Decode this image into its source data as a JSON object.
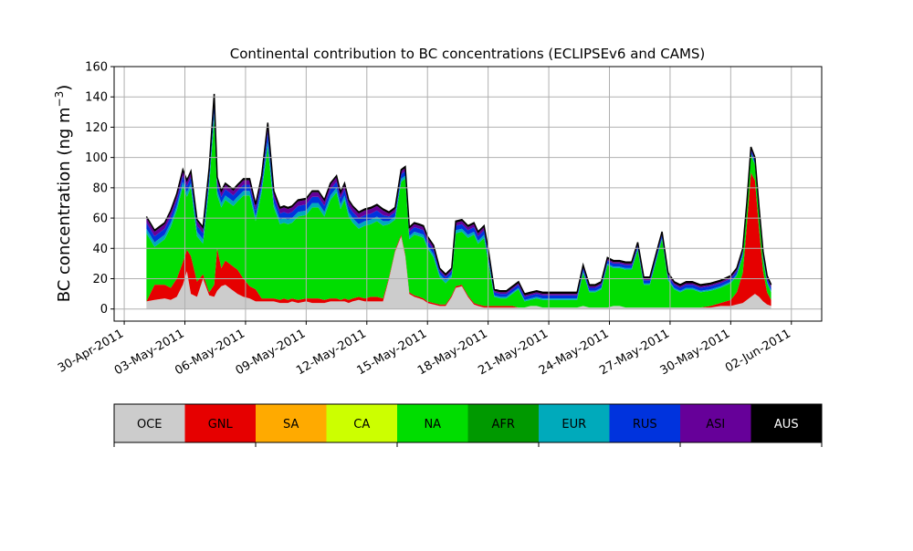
{
  "chart_data": {
    "type": "area",
    "title": "Continental contribution to BC concentrations (ECLIPSEv6 and CAMS)",
    "ylabel": "BC concentration (ng m",
    "ylabel_sup": "−3",
    "ylabel_close": ")",
    "xlabel": "",
    "ylim": [
      -8,
      160
    ],
    "yticks": [
      0,
      20,
      40,
      60,
      80,
      100,
      120,
      140,
      160
    ],
    "xlim": [
      -0.5,
      34.5
    ],
    "x_ticks": [
      0,
      3,
      6,
      9,
      12,
      15,
      18,
      21,
      24,
      27,
      30,
      33
    ],
    "x_tick_labels": [
      "30-Apr-2011",
      "03-May-2011",
      "06-May-2011",
      "09-May-2011",
      "12-May-2011",
      "15-May-2011",
      "18-May-2011",
      "21-May-2011",
      "24-May-2011",
      "27-May-2011",
      "30-May-2011",
      "02-Jun-2011"
    ],
    "x_unit": "days since 30-Apr-2011 00:00 (time axis)",
    "grid": true,
    "total_outline_color": "#000000",
    "series_colors": {
      "OCE": "#cccccc",
      "GNL": "#e60000",
      "SA": "#ffaa00",
      "CA": "#ccff00",
      "NA": "#00dd00",
      "AFR": "#009900",
      "EUR": "#00aabb",
      "RUS": "#0033dd",
      "ASI": "#660099",
      "AUS": "#000000"
    },
    "series_order": [
      "OCE",
      "GNL",
      "NA",
      "EUR",
      "RUS",
      "ASI",
      "AUS"
    ],
    "x": [
      1.1,
      1.5,
      2.0,
      2.3,
      2.6,
      2.9,
      3.1,
      3.3,
      3.6,
      3.9,
      4.2,
      4.45,
      4.6,
      4.8,
      5.0,
      5.2,
      5.4,
      5.6,
      5.9,
      6.2,
      6.5,
      6.8,
      7.1,
      7.4,
      7.7,
      7.9,
      8.1,
      8.3,
      8.6,
      9.0,
      9.3,
      9.6,
      9.9,
      10.2,
      10.5,
      10.7,
      10.9,
      11.1,
      11.3,
      11.6,
      11.9,
      12.2,
      12.5,
      12.8,
      13.1,
      13.4,
      13.7,
      13.9,
      14.1,
      14.35,
      14.6,
      14.8,
      15.0,
      15.3,
      15.6,
      15.9,
      16.2,
      16.4,
      16.7,
      17.0,
      17.3,
      17.5,
      17.8,
      18.0,
      18.3,
      18.6,
      18.9,
      19.2,
      19.5,
      19.8,
      20.1,
      20.4,
      20.7,
      21.0,
      21.3,
      21.6,
      21.8,
      22.1,
      22.4,
      22.7,
      23.0,
      23.3,
      23.6,
      23.9,
      24.2,
      24.5,
      24.8,
      25.1,
      25.4,
      25.7,
      26.0,
      26.3,
      26.6,
      26.9,
      27.2,
      27.5,
      27.8,
      28.1,
      28.5,
      29.0,
      29.5,
      30.0,
      30.3,
      30.6,
      30.8,
      31.0,
      31.2,
      31.4,
      31.6,
      31.8,
      32.0
    ],
    "series": [
      {
        "name": "OCE",
        "values": [
          5,
          6,
          7,
          6,
          8,
          16,
          25,
          10,
          8,
          20,
          9,
          8,
          12,
          15,
          16,
          14,
          12,
          10,
          8,
          7,
          5,
          5,
          5,
          5,
          4,
          4,
          4,
          5,
          4,
          5,
          4,
          4,
          4,
          5,
          5,
          5,
          5,
          4,
          5,
          6,
          5,
          5,
          5,
          5,
          20,
          38,
          48,
          35,
          10,
          8,
          7,
          6,
          4,
          3,
          2,
          2,
          8,
          14,
          15,
          8,
          3,
          2,
          1,
          1,
          1,
          1,
          1,
          1,
          1,
          1,
          2,
          2,
          1,
          1,
          1,
          1,
          1,
          1,
          1,
          2,
          1,
          1,
          1,
          1,
          2,
          2,
          1,
          1,
          1,
          1,
          1,
          1,
          1,
          1,
          1,
          1,
          1,
          1,
          1,
          1,
          2,
          2,
          3,
          4,
          6,
          8,
          10,
          8,
          5,
          3,
          2
        ]
      },
      {
        "name": "GNL",
        "values": [
          0,
          10,
          9,
          8,
          12,
          15,
          14,
          25,
          10,
          3,
          2,
          8,
          28,
          12,
          16,
          16,
          16,
          16,
          12,
          8,
          8,
          2,
          2,
          2,
          2,
          3,
          2,
          2,
          2,
          2,
          3,
          3,
          2,
          2,
          2,
          1,
          2,
          2,
          2,
          2,
          2,
          3,
          3,
          2,
          1,
          1,
          1,
          1,
          1,
          1,
          1,
          1,
          1,
          1,
          1,
          1,
          1,
          1,
          1,
          1,
          1,
          1,
          1,
          1,
          1,
          1,
          1,
          1,
          0,
          0,
          0,
          0,
          0,
          0,
          0,
          0,
          0,
          0,
          0,
          0,
          0,
          0,
          0,
          0,
          0,
          0,
          0,
          0,
          0,
          0,
          0,
          0,
          0,
          0,
          0,
          0,
          0,
          0,
          0,
          1,
          2,
          4,
          8,
          20,
          50,
          82,
          75,
          45,
          20,
          8,
          4
        ]
      },
      {
        "name": "NA",
        "values": [
          45,
          25,
          30,
          40,
          45,
          50,
          35,
          45,
          30,
          20,
          70,
          110,
          35,
          40,
          40,
          40,
          40,
          45,
          55,
          60,
          45,
          70,
          100,
          60,
          50,
          50,
          50,
          50,
          55,
          55,
          60,
          60,
          55,
          65,
          70,
          60,
          65,
          55,
          50,
          45,
          48,
          48,
          50,
          48,
          35,
          20,
          35,
          50,
          35,
          40,
          40,
          40,
          35,
          30,
          18,
          14,
          12,
          35,
          35,
          38,
          45,
          40,
          45,
          30,
          6,
          5,
          5,
          8,
          12,
          4,
          4,
          5,
          5,
          5,
          5,
          5,
          5,
          5,
          5,
          22,
          10,
          10,
          12,
          28,
          25,
          25,
          25,
          25,
          38,
          15,
          15,
          30,
          45,
          18,
          12,
          10,
          12,
          12,
          10,
          10,
          10,
          11,
          11,
          11,
          10,
          12,
          10,
          9,
          8,
          6,
          5
        ]
      },
      {
        "name": "EUR",
        "values": [
          3,
          3,
          3,
          3,
          3,
          3,
          3,
          3,
          3,
          3,
          3,
          4,
          3,
          3,
          3,
          3,
          3,
          3,
          3,
          3,
          3,
          3,
          4,
          3,
          3,
          3,
          3,
          3,
          3,
          3,
          3,
          3,
          3,
          3,
          3,
          3,
          3,
          3,
          3,
          3,
          3,
          3,
          3,
          3,
          2,
          2,
          2,
          2,
          2,
          2,
          2,
          2,
          2,
          2,
          2,
          2,
          2,
          2,
          2,
          2,
          2,
          2,
          2,
          2,
          1,
          1,
          1,
          1,
          1,
          1,
          1,
          1,
          1,
          1,
          1,
          1,
          1,
          1,
          1,
          1,
          1,
          1,
          1,
          1,
          1,
          1,
          1,
          1,
          1,
          1,
          1,
          1,
          1,
          1,
          1,
          1,
          1,
          1,
          1,
          1,
          1,
          1,
          1,
          1,
          1,
          1,
          1,
          1,
          1,
          1,
          1
        ]
      },
      {
        "name": "RUS",
        "values": [
          4,
          4,
          4,
          4,
          4,
          4,
          4,
          4,
          4,
          4,
          5,
          6,
          5,
          4,
          4,
          4,
          4,
          4,
          4,
          4,
          4,
          4,
          6,
          4,
          4,
          4,
          4,
          4,
          4,
          4,
          4,
          4,
          4,
          4,
          4,
          4,
          4,
          4,
          4,
          4,
          4,
          4,
          4,
          4,
          3,
          3,
          3,
          3,
          3,
          3,
          3,
          3,
          3,
          3,
          2,
          2,
          2,
          3,
          3,
          3,
          3,
          3,
          3,
          3,
          2,
          2,
          2,
          2,
          2,
          2,
          2,
          2,
          2,
          2,
          2,
          2,
          2,
          2,
          2,
          2,
          2,
          2,
          2,
          2,
          2,
          2,
          2,
          2,
          2,
          2,
          2,
          2,
          2,
          2,
          2,
          2,
          2,
          2,
          2,
          2,
          2,
          2,
          2,
          2,
          2,
          2,
          2,
          2,
          2,
          2,
          2
        ]
      },
      {
        "name": "ASI",
        "values": [
          3,
          3,
          3,
          3,
          3,
          3,
          3,
          3,
          3,
          3,
          3,
          4,
          3,
          3,
          3,
          3,
          3,
          3,
          3,
          3,
          3,
          3,
          4,
          3,
          3,
          3,
          3,
          3,
          3,
          3,
          3,
          3,
          3,
          3,
          3,
          3,
          3,
          3,
          3,
          3,
          3,
          3,
          3,
          3,
          2,
          2,
          2,
          2,
          2,
          2,
          2,
          2,
          2,
          2,
          1,
          1,
          1,
          2,
          2,
          2,
          2,
          2,
          2,
          2,
          1,
          1,
          1,
          1,
          1,
          1,
          1,
          1,
          1,
          1,
          1,
          1,
          1,
          1,
          1,
          1,
          1,
          1,
          1,
          1,
          1,
          1,
          1,
          1,
          1,
          1,
          1,
          1,
          1,
          1,
          1,
          1,
          1,
          1,
          1,
          1,
          1,
          1,
          1,
          1,
          1,
          1,
          1,
          1,
          1,
          1,
          1
        ]
      },
      {
        "name": "AUS",
        "values": [
          1,
          1,
          1,
          1,
          1,
          1,
          1,
          1,
          1,
          1,
          1,
          2,
          1,
          1,
          1,
          1,
          1,
          1,
          1,
          1,
          1,
          1,
          2,
          1,
          1,
          1,
          1,
          1,
          1,
          1,
          1,
          1,
          1,
          1,
          1,
          1,
          1,
          1,
          1,
          1,
          1,
          1,
          1,
          1,
          1,
          1,
          1,
          1,
          1,
          1,
          1,
          1,
          1,
          1,
          1,
          1,
          1,
          1,
          1,
          1,
          1,
          1,
          1,
          1,
          1,
          1,
          1,
          1,
          1,
          1,
          1,
          1,
          1,
          1,
          1,
          1,
          1,
          1,
          1,
          1,
          1,
          1,
          1,
          1,
          1,
          1,
          1,
          1,
          1,
          1,
          1,
          1,
          1,
          1,
          1,
          1,
          1,
          1,
          1,
          1,
          1,
          1,
          1,
          1,
          1,
          1,
          1,
          1,
          1,
          1,
          1
        ]
      }
    ]
  },
  "colorbar": {
    "labels": [
      "OCE",
      "GNL",
      "SA",
      "CA",
      "NA",
      "AFR",
      "EUR",
      "RUS",
      "ASI",
      "AUS"
    ],
    "colors": [
      "#cccccc",
      "#e60000",
      "#ffaa00",
      "#ccff00",
      "#00dd00",
      "#009900",
      "#00aabb",
      "#0033dd",
      "#660099",
      "#000000"
    ],
    "label_colors": [
      "#000000",
      "#000000",
      "#000000",
      "#000000",
      "#000000",
      "#000000",
      "#000000",
      "#000000",
      "#000000",
      "#ffffff"
    ]
  }
}
